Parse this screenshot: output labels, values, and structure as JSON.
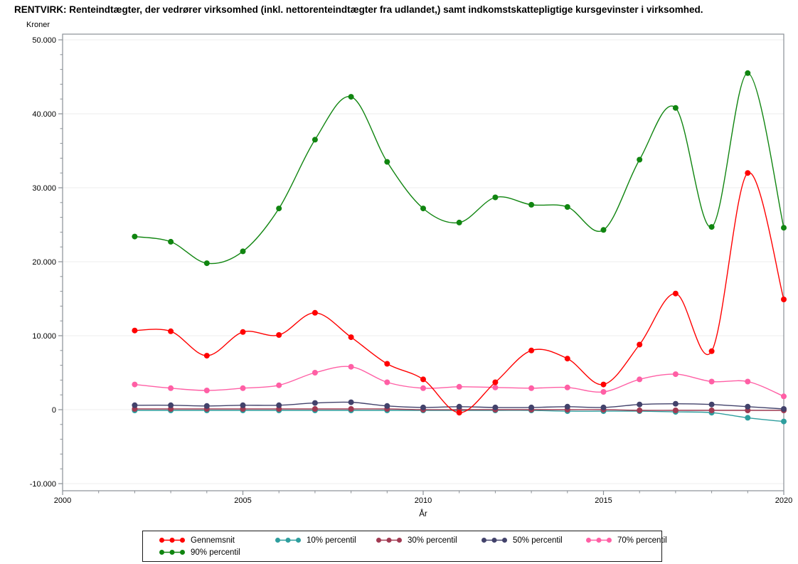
{
  "title": "RENTVIRK: Renteindtægter, der vedrører virksomhed (inkl. nettorenteindtægter fra udlandet,) samt indkomstskattepligtige kursgevinster i virksomhed.",
  "chart_data": {
    "type": "line",
    "xlabel": "År",
    "ylabel": "Kroner",
    "xlim": [
      2000,
      2020
    ],
    "ylim": [
      -10000,
      50000
    ],
    "x_major_ticks": [
      2000,
      2005,
      2010,
      2015,
      2020
    ],
    "x_minor_step": 1,
    "y_major_ticks": [
      50000,
      40000,
      30000,
      20000,
      10000,
      0,
      -10000
    ],
    "y_tick_labels": [
      "50.000",
      "40.000",
      "30.000",
      "20.000",
      "10.000",
      "0",
      "-10.000"
    ],
    "y_minor_step": 2000,
    "grid": true,
    "legend_position": "bottom",
    "x": [
      2002,
      2003,
      2004,
      2005,
      2006,
      2007,
      2008,
      2009,
      2010,
      2011,
      2012,
      2013,
      2014,
      2015,
      2016,
      2017,
      2018,
      2019,
      2020
    ],
    "series": [
      {
        "name": "Gennemsnit",
        "color": "#FF0000",
        "values": [
          10700,
          10600,
          7300,
          10500,
          10100,
          13100,
          9800,
          6200,
          4100,
          -400,
          3700,
          8000,
          6900,
          3400,
          8800,
          15700,
          7900,
          32000,
          14900
        ]
      },
      {
        "name": "10% percentil",
        "color": "#2E9E9E",
        "values": [
          -100,
          -100,
          -100,
          -100,
          -100,
          -100,
          -100,
          -100,
          -100,
          -100,
          -100,
          -100,
          -200,
          -200,
          -200,
          -300,
          -400,
          -1100,
          -1600
        ]
      },
      {
        "name": "30% percentil",
        "color": "#A13A52",
        "values": [
          100,
          100,
          100,
          100,
          100,
          100,
          100,
          100,
          0,
          0,
          0,
          0,
          0,
          0,
          -100,
          -100,
          -100,
          -100,
          -100
        ]
      },
      {
        "name": "50% percentil",
        "color": "#42426B",
        "values": [
          600,
          600,
          500,
          600,
          600,
          900,
          1000,
          500,
          300,
          400,
          300,
          300,
          400,
          300,
          700,
          800,
          700,
          400,
          100
        ]
      },
      {
        "name": "70% percentil",
        "color": "#FF5FA5",
        "values": [
          3400,
          2900,
          2600,
          2900,
          3300,
          5000,
          5800,
          3700,
          2900,
          3100,
          3000,
          2900,
          3000,
          2400,
          4100,
          4800,
          3800,
          3800,
          1800
        ]
      },
      {
        "name": "90% percentil",
        "color": "#108510",
        "values": [
          23400,
          22700,
          19800,
          21400,
          27200,
          36500,
          42300,
          33500,
          27200,
          25300,
          28700,
          27700,
          27400,
          24300,
          33800,
          40800,
          24700,
          45500,
          24600
        ]
      }
    ],
    "axis_color": "#8A9096",
    "grid_color": "#ECECEC"
  }
}
